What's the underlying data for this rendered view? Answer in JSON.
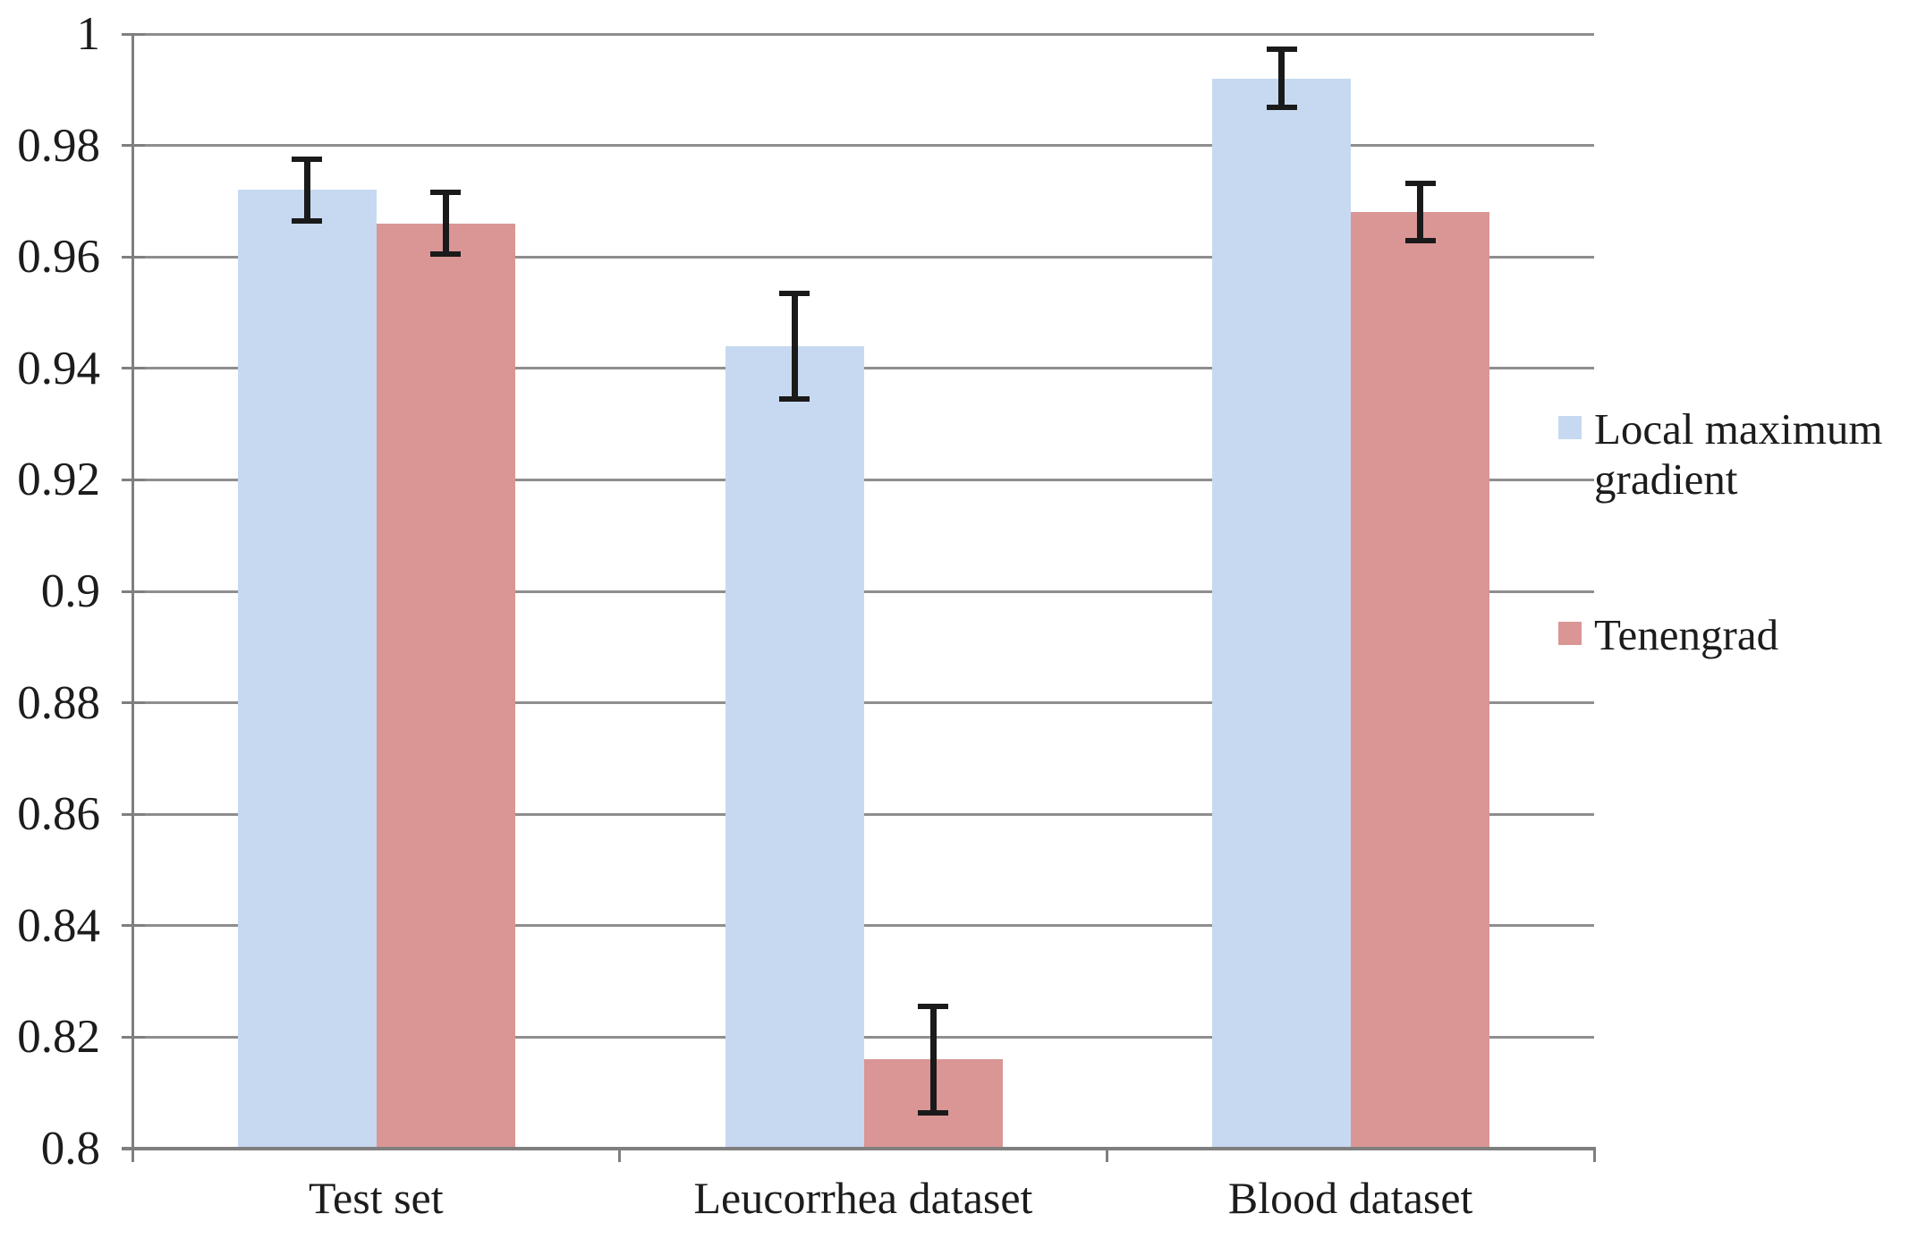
{
  "figure": {
    "background": "#ffffff"
  },
  "colors": {
    "gridline": "#8e8e8e",
    "axis": "#7f7f7f",
    "error_bar": "#1a1a1a",
    "text": "#1c1c1c",
    "series_local_maximum_gradient": "#c7d9f1",
    "series_tenengrad": "#d99694"
  },
  "chart_data": {
    "type": "bar",
    "title": "",
    "xlabel": "",
    "ylabel": "",
    "categories": [
      "Test set",
      "Leucorrhea dataset",
      "Blood dataset"
    ],
    "series": [
      {
        "name": "Local maximum gradient",
        "color": "#c7d9f1",
        "values": [
          0.972,
          0.944,
          0.992
        ],
        "errors": [
          0.006,
          0.01,
          0.0057
        ]
      },
      {
        "name": "Tenengrad",
        "color": "#d99694",
        "values": [
          0.966,
          0.816,
          0.968
        ],
        "errors": [
          0.006,
          0.01,
          0.0056
        ]
      }
    ],
    "ylim": [
      0.8,
      1.0
    ],
    "ytick_labels": [
      "0.8",
      "0.82",
      "0.84",
      "0.86",
      "0.88",
      "0.9",
      "0.92",
      "0.94",
      "0.96",
      "0.98",
      "1"
    ],
    "ytick_values": [
      0.8,
      0.82,
      0.84,
      0.86,
      0.88,
      0.9,
      0.92,
      0.94,
      0.96,
      0.98,
      1.0
    ],
    "grid": "horizontal",
    "legend_position": "right",
    "error_bars": true
  }
}
